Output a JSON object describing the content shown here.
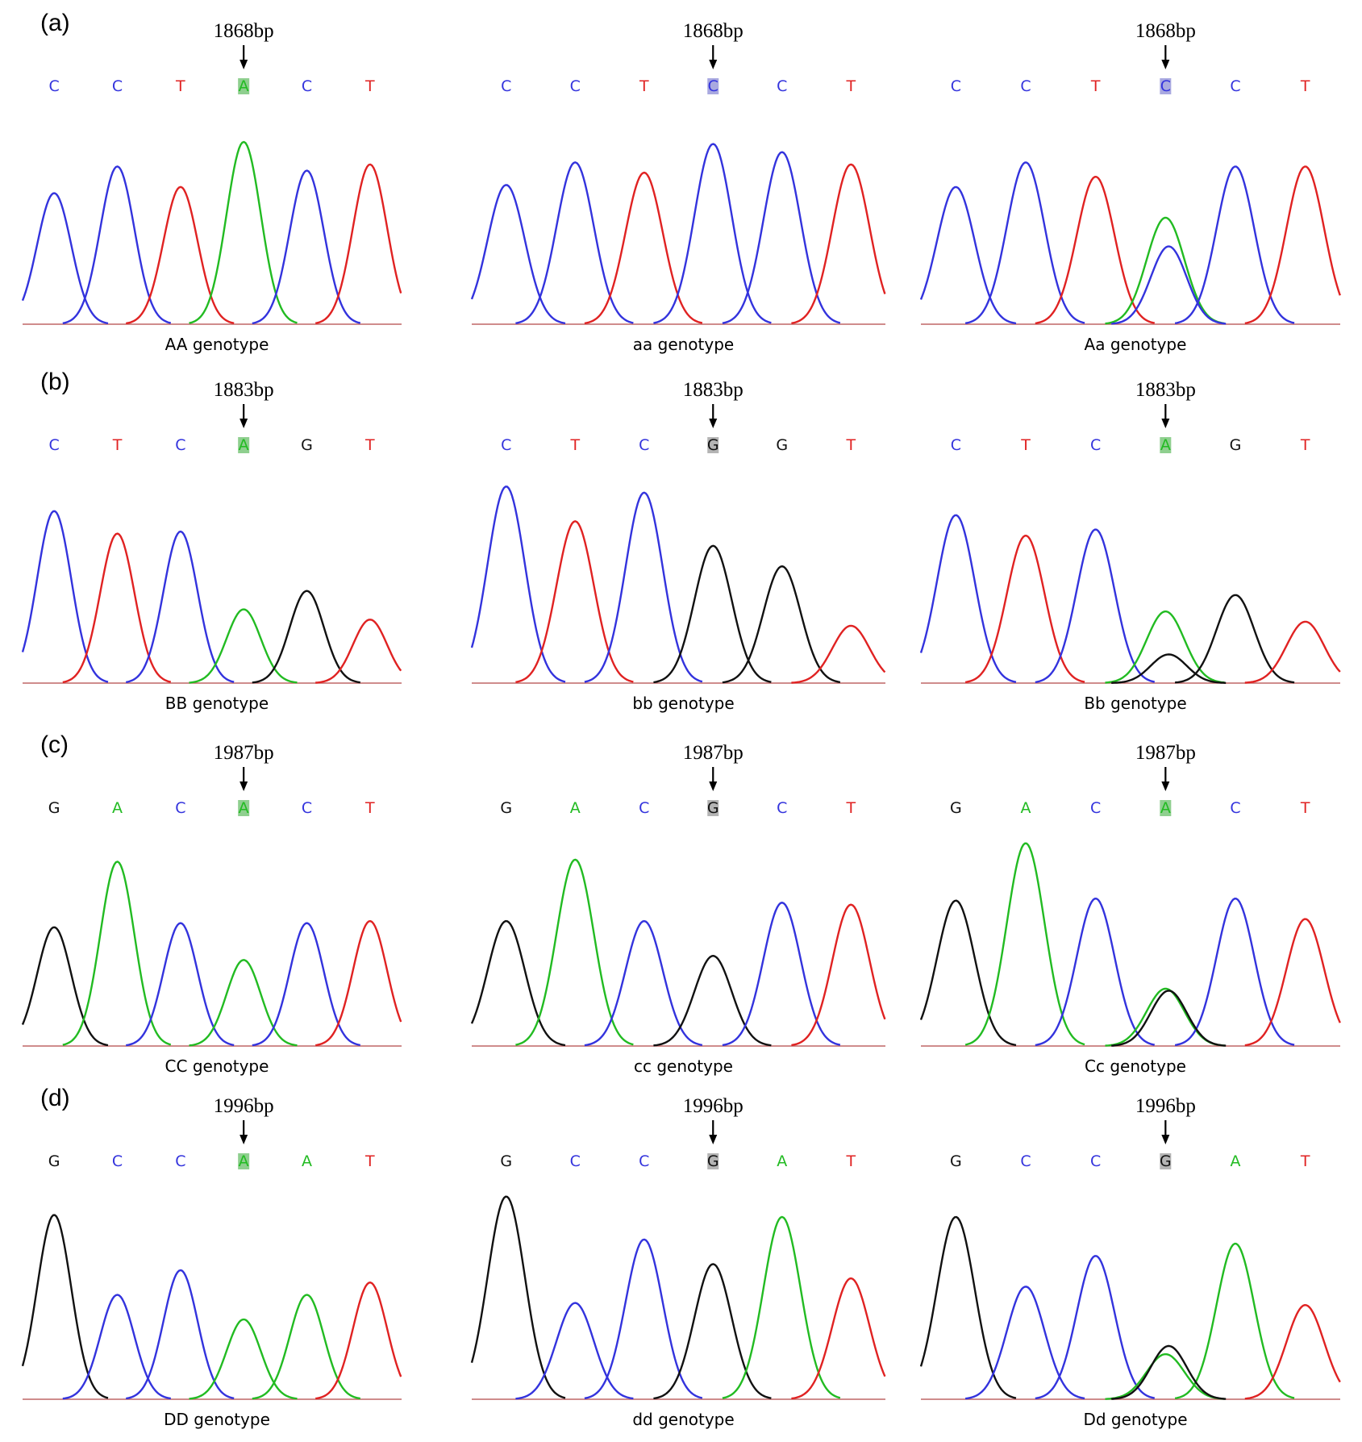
{
  "colors": {
    "A": "#22bb22",
    "C": "#3333dd",
    "G": "#111111",
    "T": "#e02222"
  },
  "highlight_colors": {
    "A": "#8fcf8f",
    "C": "#a9a9e0",
    "G": "#b4b4b4"
  },
  "rows": [
    {
      "label": "(a)",
      "panels": [
        {
          "position": "1868bp",
          "bases": [
            "C",
            "C",
            "T",
            "A",
            "C",
            "T"
          ],
          "genotype": "AA genotype",
          "peaks": [
            {
              "b": "C",
              "h": 0.64
            },
            {
              "b": "C",
              "h": 0.77
            },
            {
              "b": "T",
              "h": 0.67
            },
            {
              "b": "A",
              "h": 0.89
            },
            {
              "b": "C",
              "h": 0.75
            },
            {
              "b": "T",
              "h": 0.78
            }
          ]
        },
        {
          "position": "1868bp",
          "bases": [
            "C",
            "C",
            "T",
            "C",
            "C",
            "T"
          ],
          "genotype": "aa genotype",
          "peaks": [
            {
              "b": "C",
              "h": 0.68
            },
            {
              "b": "C",
              "h": 0.79
            },
            {
              "b": "T",
              "h": 0.74
            },
            {
              "b": "C",
              "h": 0.88
            },
            {
              "b": "C",
              "h": 0.84
            },
            {
              "b": "T",
              "h": 0.78
            }
          ]
        },
        {
          "position": "1868bp",
          "bases": [
            "C",
            "C",
            "T",
            "C",
            "C",
            "T"
          ],
          "genotype": "Aa genotype",
          "peaks": [
            {
              "b": "C",
              "h": 0.67
            },
            {
              "b": "C",
              "h": 0.79
            },
            {
              "b": "T",
              "h": 0.72
            },
            {
              "b": "A",
              "h": 0.52
            },
            {
              "b": "C",
              "h": 0.77
            },
            {
              "b": "T",
              "h": 0.77
            }
          ],
          "secondary": {
            "index": 3,
            "b": "C",
            "h": 0.38
          }
        }
      ]
    },
    {
      "label": "(b)",
      "panels": [
        {
          "position": "1883bp",
          "bases": [
            "C",
            "T",
            "C",
            "A",
            "G",
            "T"
          ],
          "genotype": "BB genotype",
          "peaks": [
            {
              "b": "C",
              "h": 0.84
            },
            {
              "b": "T",
              "h": 0.73
            },
            {
              "b": "C",
              "h": 0.74
            },
            {
              "b": "A",
              "h": 0.36
            },
            {
              "b": "G",
              "h": 0.45
            },
            {
              "b": "T",
              "h": 0.31
            }
          ]
        },
        {
          "position": "1883bp",
          "bases": [
            "C",
            "T",
            "C",
            "G",
            "G",
            "T"
          ],
          "genotype": "bb genotype",
          "peaks": [
            {
              "b": "C",
              "h": 0.96
            },
            {
              "b": "T",
              "h": 0.79
            },
            {
              "b": "C",
              "h": 0.93
            },
            {
              "b": "G",
              "h": 0.67
            },
            {
              "b": "G",
              "h": 0.57
            },
            {
              "b": "T",
              "h": 0.28
            }
          ]
        },
        {
          "position": "1883bp",
          "bases": [
            "C",
            "T",
            "C",
            "A",
            "G",
            "T"
          ],
          "genotype": "Bb genotype",
          "peaks": [
            {
              "b": "C",
              "h": 0.82
            },
            {
              "b": "T",
              "h": 0.72
            },
            {
              "b": "C",
              "h": 0.75
            },
            {
              "b": "A",
              "h": 0.35
            },
            {
              "b": "G",
              "h": 0.43
            },
            {
              "b": "T",
              "h": 0.3
            }
          ],
          "secondary": {
            "index": 3,
            "b": "G",
            "h": 0.14
          }
        }
      ]
    },
    {
      "label": "(c)",
      "panels": [
        {
          "position": "1987bp",
          "bases": [
            "G",
            "A",
            "C",
            "A",
            "C",
            "T"
          ],
          "genotype": "CC  genotype",
          "peaks": [
            {
              "b": "G",
              "h": 0.58
            },
            {
              "b": "A",
              "h": 0.9
            },
            {
              "b": "C",
              "h": 0.6
            },
            {
              "b": "A",
              "h": 0.42
            },
            {
              "b": "C",
              "h": 0.6
            },
            {
              "b": "T",
              "h": 0.61
            }
          ]
        },
        {
          "position": "1987bp",
          "bases": [
            "G",
            "A",
            "C",
            "G",
            "C",
            "T"
          ],
          "genotype": "cc  genotype",
          "peaks": [
            {
              "b": "G",
              "h": 0.61
            },
            {
              "b": "A",
              "h": 0.91
            },
            {
              "b": "C",
              "h": 0.61
            },
            {
              "b": "G",
              "h": 0.44
            },
            {
              "b": "C",
              "h": 0.7
            },
            {
              "b": "T",
              "h": 0.69
            }
          ]
        },
        {
          "position": "1987bp",
          "bases": [
            "G",
            "A",
            "C",
            "A",
            "C",
            "T"
          ],
          "genotype": "Cc  genotype",
          "peaks": [
            {
              "b": "G",
              "h": 0.71
            },
            {
              "b": "A",
              "h": 0.99
            },
            {
              "b": "C",
              "h": 0.72
            },
            {
              "b": "A",
              "h": 0.28
            },
            {
              "b": "C",
              "h": 0.72
            },
            {
              "b": "T",
              "h": 0.62
            }
          ],
          "secondary": {
            "index": 3,
            "b": "G",
            "h": 0.27
          }
        }
      ]
    },
    {
      "label": "(d)",
      "panels": [
        {
          "position": "1996bp",
          "bases": [
            "G",
            "C",
            "C",
            "A",
            "A",
            "T"
          ],
          "genotype": "DD  genotype",
          "peaks": [
            {
              "b": "G",
              "h": 0.9
            },
            {
              "b": "C",
              "h": 0.51
            },
            {
              "b": "C",
              "h": 0.63
            },
            {
              "b": "A",
              "h": 0.39
            },
            {
              "b": "A",
              "h": 0.51
            },
            {
              "b": "T",
              "h": 0.57
            }
          ]
        },
        {
          "position": "1996bp",
          "bases": [
            "G",
            "C",
            "C",
            "G",
            "A",
            "T"
          ],
          "genotype": "dd  genotype",
          "peaks": [
            {
              "b": "G",
              "h": 0.99
            },
            {
              "b": "C",
              "h": 0.47
            },
            {
              "b": "C",
              "h": 0.78
            },
            {
              "b": "G",
              "h": 0.66
            },
            {
              "b": "A",
              "h": 0.89
            },
            {
              "b": "T",
              "h": 0.59
            }
          ]
        },
        {
          "position": "1996bp",
          "bases": [
            "G",
            "C",
            "C",
            "G",
            "A",
            "T"
          ],
          "genotype": "Dd  genotype",
          "peaks": [
            {
              "b": "G",
              "h": 0.89
            },
            {
              "b": "C",
              "h": 0.55
            },
            {
              "b": "C",
              "h": 0.7
            },
            {
              "b": "A",
              "h": 0.22
            },
            {
              "b": "A",
              "h": 0.76
            },
            {
              "b": "T",
              "h": 0.46
            }
          ],
          "secondary": {
            "index": 3,
            "b": "G",
            "h": 0.26
          }
        }
      ]
    }
  ]
}
